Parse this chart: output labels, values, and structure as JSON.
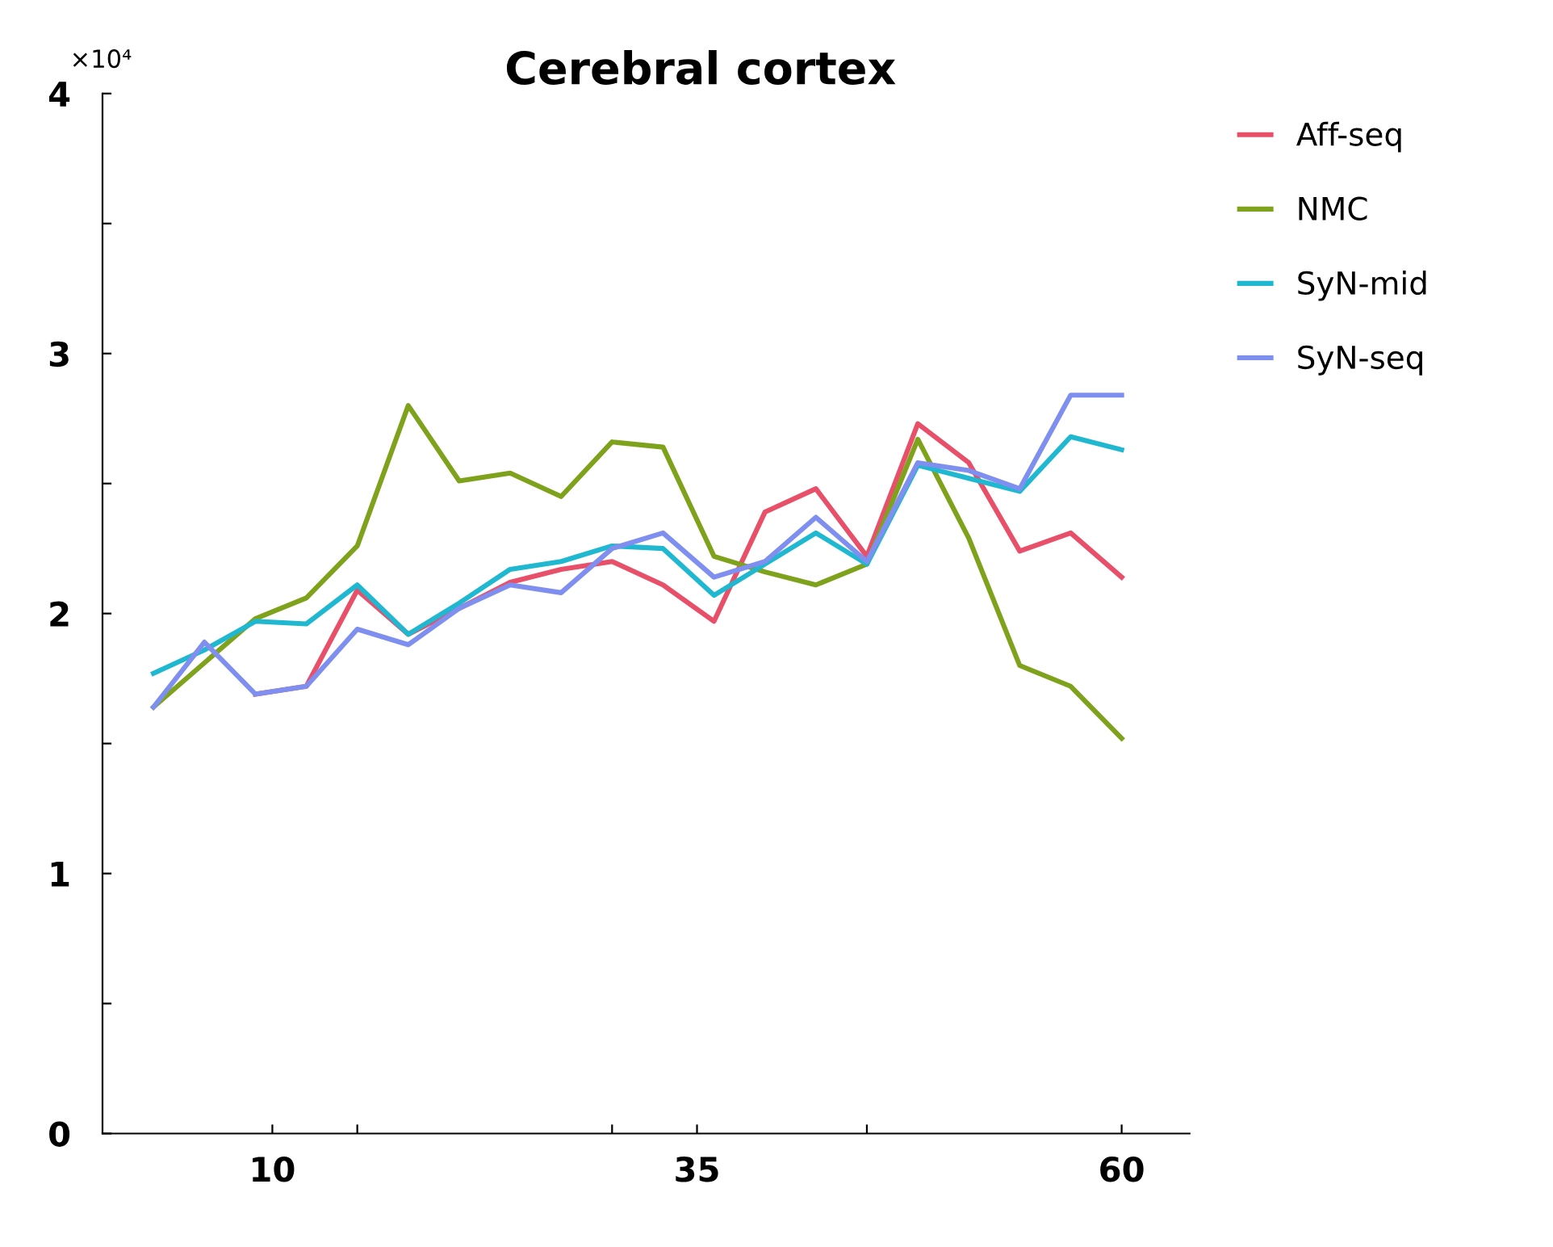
{
  "chart_data": {
    "type": "line",
    "title": "Cerebral cortex",
    "x": [
      3,
      6,
      9,
      12,
      15,
      18,
      21,
      24,
      27,
      30,
      33,
      36,
      39,
      42,
      45,
      48,
      51,
      54,
      57,
      60
    ],
    "series": [
      {
        "name": "Aff-seq",
        "color": "#e8506a",
        "values": [
          null,
          null,
          1.69,
          1.72,
          2.09,
          1.92,
          2.02,
          2.12,
          2.17,
          2.2,
          2.11,
          1.97,
          2.39,
          2.48,
          2.22,
          2.73,
          2.58,
          2.24,
          2.31,
          2.14
        ]
      },
      {
        "name": "NMC",
        "color": "#7fa21c",
        "values": [
          1.64,
          1.81,
          1.98,
          2.06,
          2.26,
          2.8,
          2.51,
          2.54,
          2.45,
          2.66,
          2.64,
          2.22,
          2.16,
          2.11,
          2.19,
          2.67,
          2.29,
          1.8,
          1.72,
          1.52
        ]
      },
      {
        "name": "SyN-mid",
        "color": "#20b8d0",
        "values": [
          1.77,
          1.86,
          1.97,
          1.96,
          2.11,
          1.92,
          2.04,
          2.17,
          2.2,
          2.26,
          2.25,
          2.07,
          2.19,
          2.31,
          2.19,
          2.57,
          2.52,
          2.47,
          2.68,
          2.63
        ]
      },
      {
        "name": "SyN-seq",
        "color": "#7f8fef",
        "values": [
          1.64,
          1.89,
          1.69,
          1.72,
          1.94,
          1.88,
          2.02,
          2.11,
          2.08,
          2.25,
          2.31,
          2.14,
          2.2,
          2.37,
          2.2,
          2.58,
          2.55,
          2.48,
          2.84,
          2.84
        ]
      }
    ],
    "xlim": [
      0,
      64
    ],
    "xticks": [
      10,
      {
        "value": 15,
        "label": null
      },
      {
        "value": 30,
        "label": null
      },
      35,
      {
        "value": 45,
        "label": null
      },
      60
    ],
    "ylim": [
      0,
      4
    ],
    "yticks": [
      0,
      {
        "value": 0.5,
        "label": null
      },
      1,
      {
        "value": 1.5,
        "label": null
      },
      2,
      {
        "value": 2.5,
        "label": null
      },
      3,
      {
        "value": 3.5,
        "label": null
      },
      4
    ],
    "annotations": [
      "×10⁴"
    ],
    "grid": false,
    "legend": "top right",
    "marker": "none",
    "line_style": "solid"
  }
}
